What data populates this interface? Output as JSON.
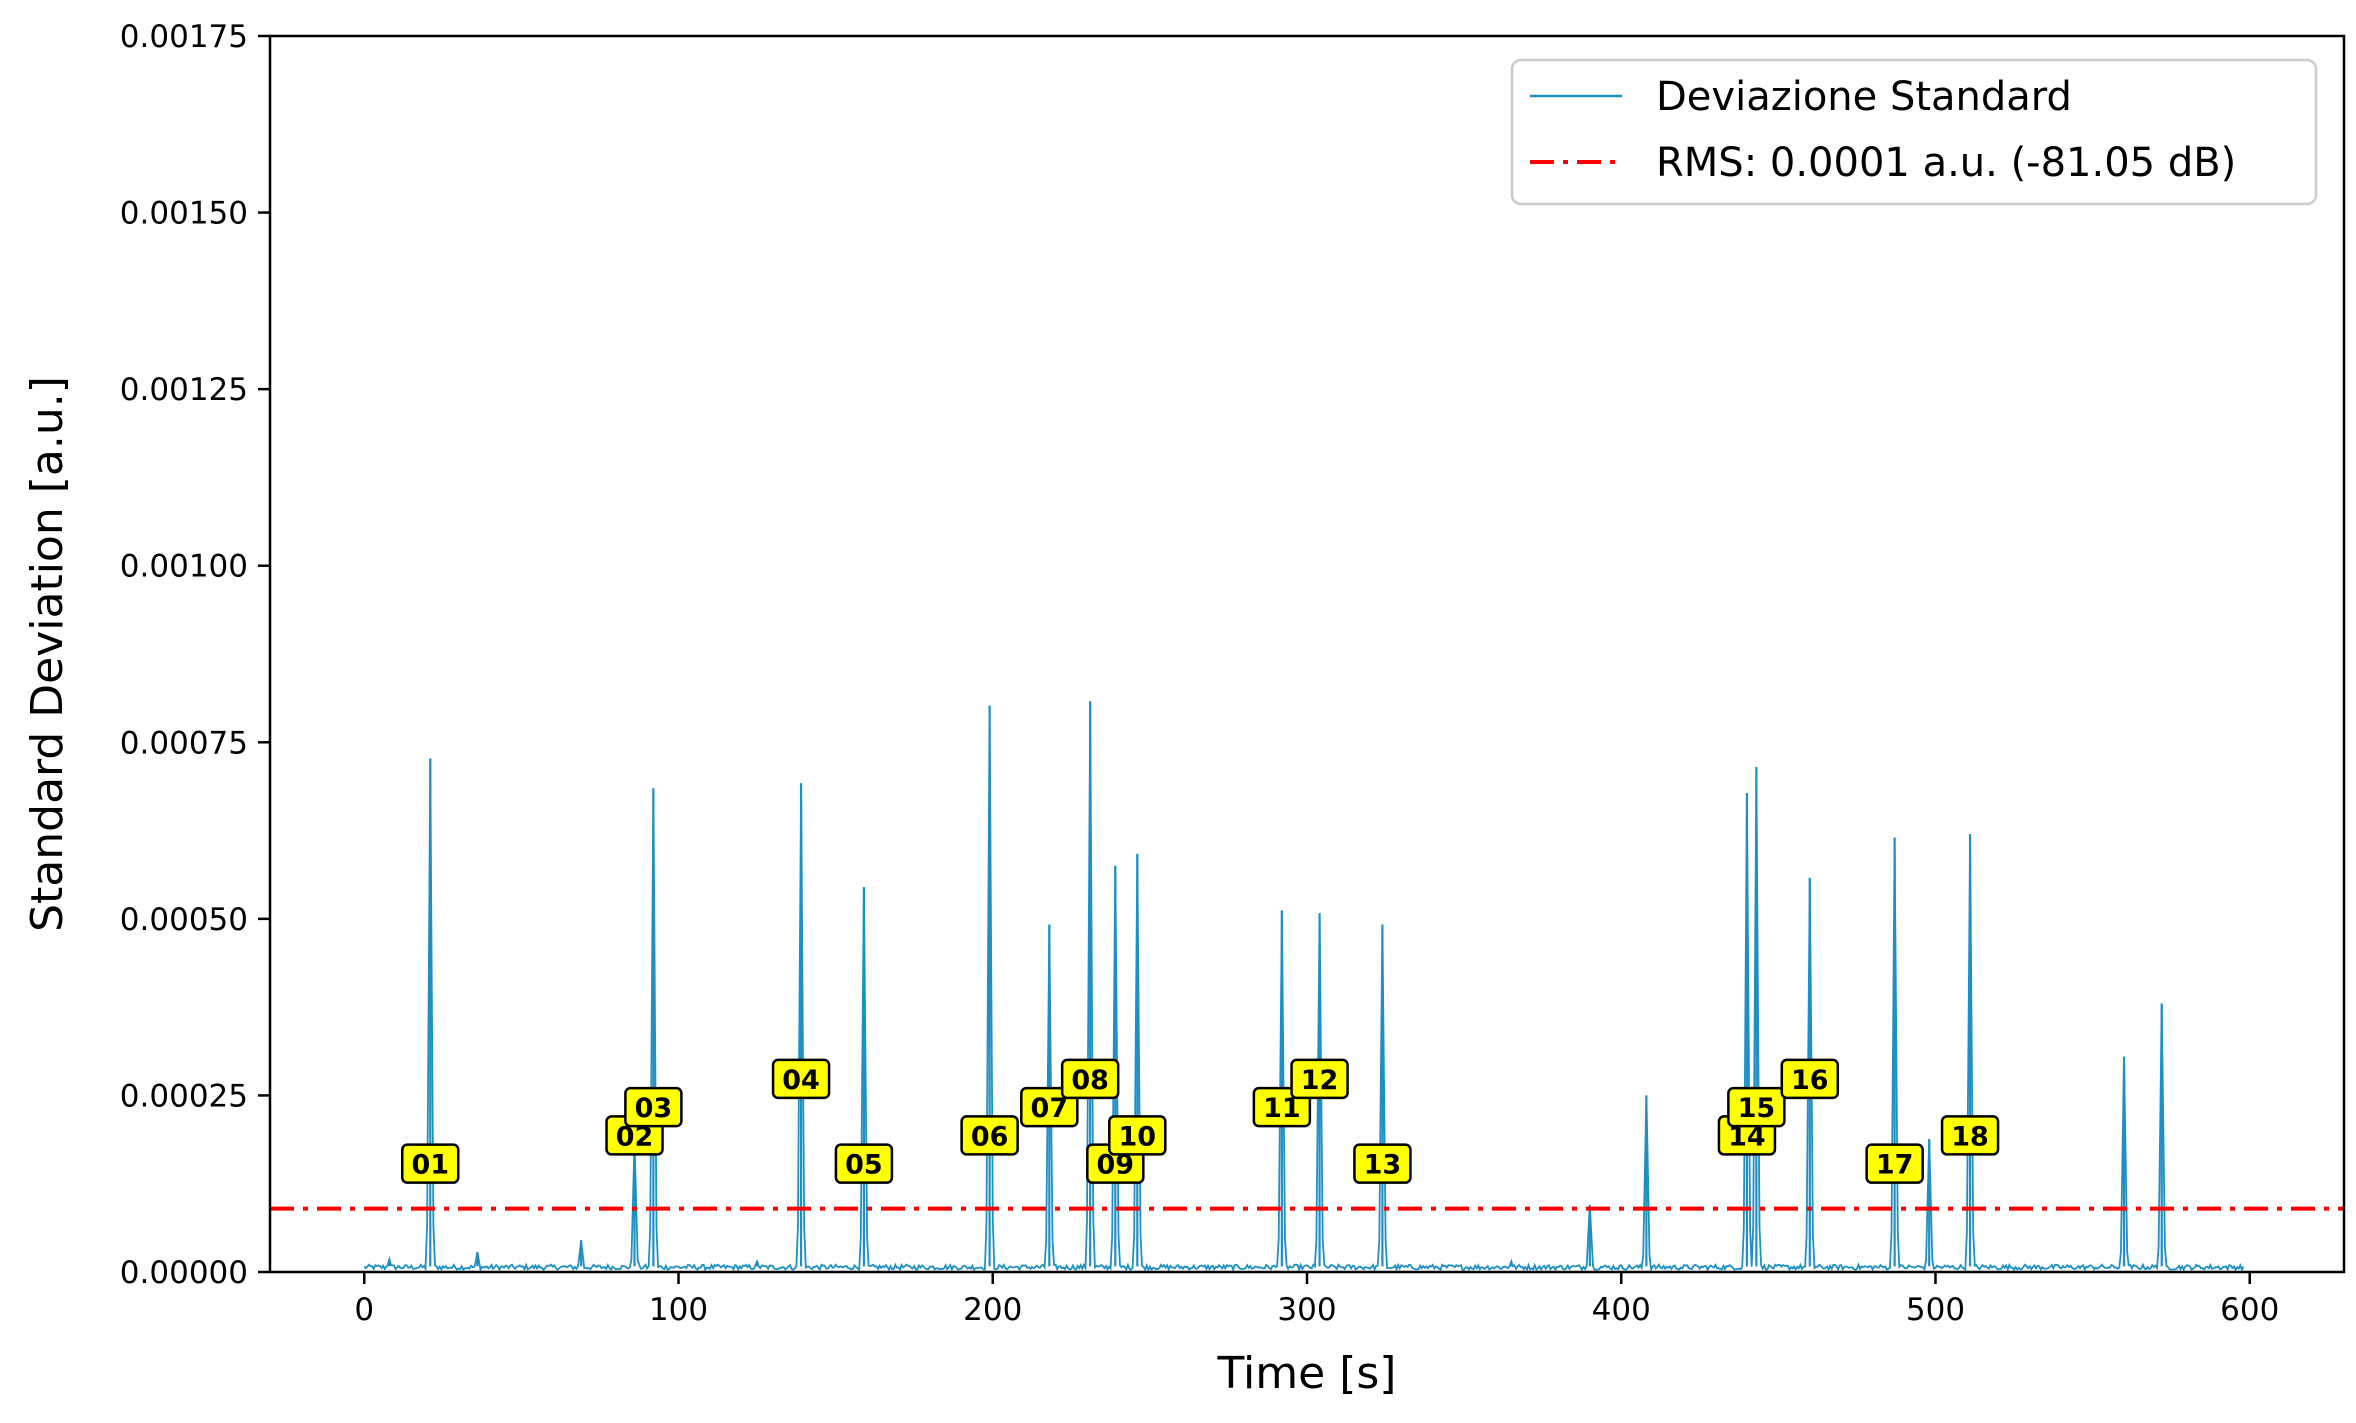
{
  "chart_data": {
    "type": "line",
    "title": "",
    "xlabel": "Time [s]",
    "ylabel": "Standard Deviation [a.u.]",
    "xlim": [
      -30,
      630
    ],
    "ylim": [
      0,
      0.00175
    ],
    "xticks": [
      0,
      100,
      200,
      300,
      400,
      500,
      600
    ],
    "xtick_labels": [
      "0",
      "100",
      "200",
      "300",
      "400",
      "500",
      "600"
    ],
    "yticks": [
      0,
      0.00025,
      0.0005,
      0.00075,
      0.001,
      0.00125,
      0.0015,
      0.00175
    ],
    "ytick_labels": [
      "0.00000",
      "0.00025",
      "0.00050",
      "0.00075",
      "0.00100",
      "0.00125",
      "0.00150",
      "0.00175"
    ],
    "grid": false,
    "legend_position": "top-right",
    "series": [
      {
        "name": "Deviazione Standard",
        "color": "#1f8fc4",
        "style": "solid",
        "baseline": 8e-06,
        "x_range": [
          0,
          598
        ],
        "peaks": [
          {
            "x": 8,
            "y": 1.8e-05
          },
          {
            "x": 21,
            "y": 0.000727
          },
          {
            "x": 36,
            "y": 2.8e-05
          },
          {
            "x": 69,
            "y": 4.5e-05
          },
          {
            "x": 86,
            "y": 0.000185
          },
          {
            "x": 92,
            "y": 0.000685
          },
          {
            "x": 125,
            "y": 1.5e-05
          },
          {
            "x": 139,
            "y": 0.000692
          },
          {
            "x": 159,
            "y": 0.000545
          },
          {
            "x": 199,
            "y": 0.000802
          },
          {
            "x": 218,
            "y": 0.000492
          },
          {
            "x": 231,
            "y": 0.000808
          },
          {
            "x": 239,
            "y": 0.000575
          },
          {
            "x": 246,
            "y": 0.000592
          },
          {
            "x": 292,
            "y": 0.000512
          },
          {
            "x": 304,
            "y": 0.000508
          },
          {
            "x": 324,
            "y": 0.000492
          },
          {
            "x": 365,
            "y": 1.5e-05
          },
          {
            "x": 390,
            "y": 9.5e-05
          },
          {
            "x": 408,
            "y": 0.00025
          },
          {
            "x": 440,
            "y": 0.000678
          },
          {
            "x": 443,
            "y": 0.000715
          },
          {
            "x": 460,
            "y": 0.000558
          },
          {
            "x": 487,
            "y": 0.000615
          },
          {
            "x": 498,
            "y": 0.000188
          },
          {
            "x": 511,
            "y": 0.00062
          },
          {
            "x": 560,
            "y": 0.000305
          },
          {
            "x": 572,
            "y": 0.00038
          }
        ]
      },
      {
        "name": "RMS: 0.0001 a.u. (-81.05 dB)",
        "color": "#ff0000",
        "style": "dashdot",
        "y": 8.98e-05
      }
    ],
    "annotations": [
      {
        "label": "01",
        "x": 21,
        "y": 0.000152
      },
      {
        "label": "02",
        "x": 86,
        "y": 0.000192
      },
      {
        "label": "03",
        "x": 92,
        "y": 0.000232
      },
      {
        "label": "04",
        "x": 139,
        "y": 0.000272
      },
      {
        "label": "05",
        "x": 159,
        "y": 0.000152
      },
      {
        "label": "06",
        "x": 199,
        "y": 0.000192
      },
      {
        "label": "07",
        "x": 218,
        "y": 0.000232
      },
      {
        "label": "08",
        "x": 231,
        "y": 0.000272
      },
      {
        "label": "09",
        "x": 239,
        "y": 0.000152
      },
      {
        "label": "10",
        "x": 246,
        "y": 0.000192
      },
      {
        "label": "11",
        "x": 292,
        "y": 0.000232
      },
      {
        "label": "12",
        "x": 304,
        "y": 0.000272
      },
      {
        "label": "13",
        "x": 324,
        "y": 0.000152
      },
      {
        "label": "14",
        "x": 440,
        "y": 0.000192
      },
      {
        "label": "15",
        "x": 443,
        "y": 0.000232
      },
      {
        "label": "16",
        "x": 460,
        "y": 0.000272
      },
      {
        "label": "17",
        "x": 487,
        "y": 0.000152
      },
      {
        "label": "18",
        "x": 511,
        "y": 0.000192
      }
    ],
    "annotation_style": {
      "fill": "#ffff00",
      "stroke": "#000000"
    }
  }
}
